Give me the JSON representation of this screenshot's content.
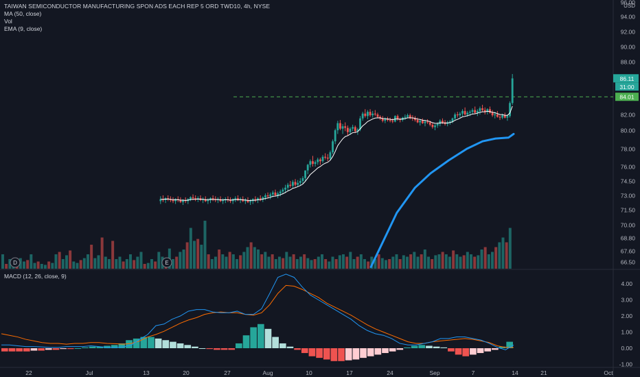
{
  "header": {
    "title": "TAIWAN SEMICONDUCTOR MANUFACTURING SPON ADS EACH REP 5 ORD TWD10, 4h, NYSE",
    "indicators": [
      "MA (50, close)",
      "Vol",
      "EMA (9, close)"
    ],
    "macd_label": "MACD (12, 26, close, 9)"
  },
  "price_axis": {
    "currency": "USD",
    "ticks": [
      "96.00",
      "94.00",
      "92.00",
      "90.00",
      "88.00",
      "84.01",
      "82.00",
      "80.00",
      "78.00",
      "76.00",
      "74.50",
      "73.00",
      "71.50",
      "70.00",
      "68.80",
      "67.60",
      "66.50"
    ],
    "last_price": "86.11",
    "countdown": "31:00",
    "alert_level": "84.01"
  },
  "macd_axis": {
    "ticks": [
      "4.00",
      "3.00",
      "2.00",
      "1.00",
      "0.00",
      "-1.00"
    ]
  },
  "time_axis": {
    "labels": [
      "22",
      "Jul",
      "13",
      "20",
      "27",
      "Aug",
      "10",
      "17",
      "24",
      "Sep",
      "7",
      "14",
      "21",
      "Oct"
    ]
  },
  "markers": [
    {
      "letter": "D",
      "meaning": "dividend"
    },
    {
      "letter": "E",
      "meaning": "earnings"
    }
  ],
  "colors": {
    "background": "#131722",
    "up": "#26a69a",
    "down": "#ef5350",
    "ma50": "#2196f3",
    "ema9": "#ffffff",
    "macd_line": "#2196f3",
    "signal_line": "#ff6d00",
    "alert_line": "#4caf50"
  },
  "chart_data": {
    "type": "candlestick",
    "candles_ohlc": [
      [
        72.4,
        72.9,
        72.1,
        72.6
      ],
      [
        72.6,
        73.0,
        72.3,
        72.5
      ],
      [
        72.5,
        72.8,
        72.2,
        72.7
      ],
      [
        72.7,
        73.0,
        72.4,
        72.6
      ],
      [
        72.6,
        72.9,
        72.3,
        72.5
      ],
      [
        72.5,
        72.8,
        72.2,
        72.4
      ],
      [
        72.4,
        72.7,
        72.1,
        72.6
      ],
      [
        72.6,
        72.9,
        72.3,
        72.5
      ],
      [
        72.5,
        72.8,
        72.2,
        72.3
      ],
      [
        72.3,
        72.6,
        72.0,
        72.5
      ],
      [
        72.5,
        72.8,
        72.2,
        72.4
      ],
      [
        72.4,
        72.7,
        72.1,
        72.6
      ],
      [
        72.6,
        72.9,
        72.4,
        72.8
      ],
      [
        72.8,
        73.1,
        72.5,
        72.7
      ],
      [
        72.7,
        73.0,
        72.4,
        72.6
      ],
      [
        72.6,
        72.9,
        72.3,
        72.7
      ],
      [
        72.7,
        73.0,
        72.4,
        72.5
      ],
      [
        72.5,
        72.8,
        72.2,
        72.6
      ],
      [
        72.6,
        72.9,
        72.3,
        72.4
      ],
      [
        72.4,
        72.7,
        72.1,
        72.5
      ],
      [
        72.5,
        72.8,
        72.2,
        72.7
      ],
      [
        72.7,
        73.0,
        72.4,
        72.6
      ],
      [
        72.6,
        72.9,
        72.3,
        72.5
      ],
      [
        72.5,
        72.8,
        72.2,
        72.6
      ],
      [
        72.6,
        72.9,
        72.3,
        72.4
      ],
      [
        72.4,
        72.7,
        72.1,
        72.5
      ],
      [
        72.5,
        72.8,
        72.2,
        72.6
      ],
      [
        72.6,
        72.9,
        72.3,
        72.5
      ],
      [
        72.5,
        72.8,
        72.2,
        72.4
      ],
      [
        72.4,
        72.7,
        72.1,
        72.6
      ],
      [
        72.6,
        72.9,
        72.3,
        72.7
      ],
      [
        72.7,
        73.0,
        72.4,
        72.5
      ],
      [
        72.5,
        72.8,
        72.2,
        72.6
      ],
      [
        72.6,
        72.9,
        72.3,
        72.4
      ],
      [
        72.4,
        72.7,
        72.1,
        72.5
      ],
      [
        72.5,
        72.8,
        72.2,
        72.3
      ],
      [
        72.3,
        72.6,
        72.0,
        72.4
      ],
      [
        72.4,
        72.7,
        72.1,
        72.6
      ],
      [
        72.6,
        72.9,
        72.3,
        72.5
      ],
      [
        72.5,
        72.8,
        72.2,
        72.7
      ],
      [
        72.7,
        73.0,
        72.4,
        72.6
      ],
      [
        72.6,
        72.9,
        72.3,
        72.8
      ],
      [
        72.8,
        73.2,
        72.5,
        73.0
      ],
      [
        73.0,
        73.3,
        72.7,
        72.9
      ],
      [
        72.9,
        73.3,
        72.6,
        73.1
      ],
      [
        73.1,
        73.5,
        72.8,
        73.3
      ],
      [
        73.3,
        73.6,
        72.9,
        73.0
      ],
      [
        73.0,
        73.4,
        72.7,
        73.2
      ],
      [
        73.2,
        73.6,
        72.9,
        73.4
      ],
      [
        73.4,
        73.8,
        73.1,
        73.6
      ],
      [
        73.6,
        74.1,
        73.3,
        73.8
      ],
      [
        73.8,
        74.3,
        73.5,
        74.1
      ],
      [
        74.1,
        74.5,
        73.8,
        74.0
      ],
      [
        74.0,
        74.6,
        73.8,
        74.4
      ],
      [
        74.4,
        74.7,
        73.9,
        74.1
      ],
      [
        74.1,
        74.6,
        73.9,
        74.3
      ],
      [
        74.3,
        74.8,
        74.0,
        74.5
      ],
      [
        74.5,
        75.0,
        74.2,
        74.8
      ],
      [
        74.8,
        75.4,
        74.5,
        75.6
      ],
      [
        75.6,
        76.3,
        75.2,
        76.2
      ],
      [
        76.2,
        76.8,
        75.9,
        76.6
      ],
      [
        76.6,
        77.2,
        76.0,
        76.3
      ],
      [
        76.3,
        76.7,
        76.0,
        76.5
      ],
      [
        76.5,
        77.0,
        76.2,
        76.8
      ],
      [
        76.8,
        77.0,
        76.2,
        76.6
      ],
      [
        76.6,
        77.3,
        76.4,
        77.1
      ],
      [
        77.1,
        77.5,
        76.8,
        77.0
      ],
      [
        77.0,
        77.4,
        76.6,
        76.9
      ],
      [
        76.9,
        77.8,
        76.7,
        77.6
      ],
      [
        77.6,
        79.0,
        77.4,
        78.8
      ],
      [
        78.8,
        80.2,
        78.5,
        80.0
      ],
      [
        80.0,
        81.2,
        79.6,
        80.9
      ],
      [
        80.9,
        81.3,
        80.0,
        80.2
      ],
      [
        80.2,
        80.8,
        79.6,
        80.5
      ],
      [
        80.5,
        81.0,
        79.9,
        80.3
      ],
      [
        80.3,
        80.6,
        79.4,
        79.8
      ],
      [
        79.8,
        80.4,
        79.5,
        80.2
      ],
      [
        80.2,
        80.7,
        79.9,
        80.4
      ],
      [
        80.4,
        80.6,
        79.7,
        79.9
      ],
      [
        79.9,
        80.3,
        79.5,
        80.1
      ],
      [
        80.1,
        81.8,
        79.9,
        81.5
      ],
      [
        81.5,
        82.3,
        81.2,
        82.1
      ],
      [
        82.1,
        82.6,
        81.6,
        81.8
      ],
      [
        81.8,
        82.5,
        81.4,
        82.3
      ],
      [
        82.3,
        82.6,
        81.7,
        81.9
      ],
      [
        81.9,
        82.4,
        81.6,
        82.1
      ],
      [
        82.1,
        82.5,
        81.8,
        82.0
      ],
      [
        82.0,
        82.2,
        81.6,
        81.7
      ],
      [
        81.7,
        81.9,
        81.3,
        81.5
      ],
      [
        81.5,
        81.8,
        81.0,
        81.2
      ],
      [
        81.2,
        81.6,
        80.9,
        81.4
      ],
      [
        81.4,
        81.7,
        81.1,
        81.3
      ],
      [
        81.3,
        81.6,
        81.0,
        81.2
      ],
      [
        81.2,
        81.5,
        80.9,
        81.1
      ],
      [
        81.1,
        81.9,
        81.0,
        81.8
      ],
      [
        81.8,
        82.0,
        81.2,
        81.4
      ],
      [
        81.4,
        81.6,
        81.0,
        81.3
      ],
      [
        81.3,
        81.7,
        81.1,
        81.6
      ],
      [
        81.6,
        82.0,
        81.3,
        81.7
      ],
      [
        81.7,
        82.1,
        81.5,
        81.9
      ],
      [
        81.9,
        82.1,
        81.4,
        81.6
      ],
      [
        81.6,
        81.9,
        81.2,
        81.5
      ],
      [
        81.5,
        81.8,
        81.1,
        81.3
      ],
      [
        81.3,
        81.6,
        80.9,
        81.0
      ],
      [
        81.0,
        81.4,
        80.6,
        81.2
      ],
      [
        81.2,
        81.5,
        80.8,
        80.9
      ],
      [
        80.9,
        81.3,
        80.5,
        81.1
      ],
      [
        81.1,
        81.4,
        80.8,
        81.0
      ],
      [
        81.0,
        81.2,
        80.5,
        80.7
      ],
      [
        80.7,
        81.0,
        80.2,
        80.4
      ],
      [
        80.4,
        80.8,
        80.0,
        80.6
      ],
      [
        80.6,
        81.0,
        80.3,
        80.8
      ],
      [
        80.8,
        81.4,
        80.5,
        81.2
      ],
      [
        81.2,
        81.5,
        80.8,
        81.0
      ],
      [
        81.0,
        81.3,
        80.6,
        80.8
      ],
      [
        80.8,
        81.2,
        80.5,
        81.0
      ],
      [
        81.0,
        81.3,
        80.7,
        81.1
      ],
      [
        81.1,
        81.6,
        80.9,
        81.5
      ],
      [
        81.5,
        82.2,
        81.3,
        82.0
      ],
      [
        82.0,
        82.3,
        81.6,
        81.9
      ],
      [
        81.9,
        82.3,
        81.6,
        82.1
      ],
      [
        82.1,
        82.6,
        81.8,
        82.4
      ],
      [
        82.4,
        82.8,
        81.9,
        82.0
      ],
      [
        82.0,
        82.4,
        81.7,
        82.2
      ],
      [
        82.2,
        82.5,
        81.8,
        82.3
      ],
      [
        82.3,
        82.7,
        82.0,
        82.5
      ],
      [
        82.5,
        82.9,
        82.1,
        82.2
      ],
      [
        82.2,
        82.6,
        81.8,
        82.4
      ],
      [
        82.4,
        82.9,
        82.0,
        82.7
      ],
      [
        82.7,
        83.1,
        82.3,
        82.5
      ],
      [
        82.5,
        82.8,
        82.0,
        82.3
      ],
      [
        82.3,
        82.7,
        82.0,
        82.6
      ],
      [
        82.6,
        82.9,
        82.1,
        82.2
      ],
      [
        82.2,
        82.5,
        81.7,
        81.9
      ],
      [
        81.9,
        82.3,
        81.5,
        82.0
      ],
      [
        82.0,
        82.4,
        81.6,
        81.7
      ],
      [
        81.7,
        82.0,
        81.3,
        81.6
      ],
      [
        81.6,
        82.1,
        81.4,
        81.9
      ],
      [
        81.9,
        82.2,
        81.5,
        81.6
      ],
      [
        81.6,
        82.0,
        81.2,
        81.8
      ],
      [
        81.8,
        83.5,
        81.6,
        83.3
      ],
      [
        83.3,
        86.6,
        83.1,
        86.1
      ]
    ],
    "volume_relative": [
      0.3,
      0.1,
      0.2,
      0.15,
      0.1,
      0.22,
      0.15,
      0.18,
      0.3,
      0.12,
      0.15,
      0.1,
      0.08,
      0.15,
      0.12,
      0.3,
      0.35,
      0.2,
      0.28,
      0.38,
      0.15,
      0.12,
      0.18,
      0.22,
      0.3,
      0.5,
      0.22,
      0.28,
      0.65,
      0.25,
      0.2,
      0.58,
      0.2,
      0.25,
      0.15,
      0.2,
      0.3,
      0.18,
      0.25,
      0.35,
      0.1,
      0.12,
      0.2,
      0.15,
      0.35,
      0.25,
      0.15,
      0.42,
      0.2,
      0.25,
      0.35,
      0.4,
      0.55,
      0.85,
      0.58,
      0.62,
      0.5,
      1.0,
      0.3,
      0.2,
      0.25,
      0.4,
      0.3,
      0.25,
      0.35,
      0.3,
      0.2,
      0.28,
      0.35,
      0.45,
      0.55,
      0.45,
      0.4,
      0.3,
      0.35,
      0.25,
      0.3,
      0.2,
      0.25,
      0.22,
      0.35,
      0.25,
      0.3,
      0.2,
      0.25,
      0.3,
      0.22,
      0.18,
      0.2,
      0.25,
      0.3,
      0.2,
      0.15,
      0.25,
      0.2,
      0.28,
      0.3,
      0.25,
      0.35,
      0.2,
      0.25,
      0.3,
      0.2,
      0.15,
      0.25,
      0.2,
      0.3,
      0.22,
      0.18,
      0.2,
      0.25,
      0.3,
      0.2,
      0.28,
      0.25,
      0.3,
      0.35,
      0.25,
      0.3,
      0.4,
      0.25,
      0.2,
      0.28,
      0.3,
      0.35,
      0.3,
      0.25,
      0.38,
      0.3,
      0.25,
      0.28,
      0.35,
      0.3,
      0.25,
      0.28,
      0.4,
      0.45,
      0.3,
      0.35,
      0.45,
      0.55,
      0.65,
      0.55,
      0.85
    ],
    "ma50_visible_points": [
      [
        0.45,
        66.0
      ],
      [
        0.55,
        71.2
      ],
      [
        0.62,
        73.8
      ],
      [
        0.68,
        75.3
      ],
      [
        0.75,
        76.7
      ],
      [
        0.82,
        78.0
      ],
      [
        0.88,
        78.8
      ],
      [
        0.93,
        79.1
      ],
      [
        0.98,
        79.2
      ],
      [
        1.0,
        79.6
      ]
    ],
    "macd_line": [
      0.2,
      0.2,
      0.15,
      0.1,
      0.1,
      0.08,
      0.05,
      0.05,
      0.1,
      0.1,
      0.1,
      0.15,
      0.1,
      0.05,
      0.05,
      0.08,
      0.2,
      0.55,
      0.85,
      1.4,
      1.5,
      1.8,
      2.0,
      2.3,
      2.4,
      2.4,
      2.25,
      2.2,
      2.2,
      2.3,
      2.1,
      2.1,
      2.45,
      3.4,
      4.4,
      4.6,
      4.4,
      3.8,
      3.3,
      3.0,
      2.7,
      2.4,
      2.1,
      1.8,
      1.4,
      1.1,
      0.9,
      0.8,
      0.6,
      0.3,
      0.2,
      0.2,
      0.3,
      0.4,
      0.6,
      0.6,
      0.7,
      0.7,
      0.6,
      0.5,
      0.3,
      0.05,
      -0.1,
      0.2
    ],
    "signal_line": [
      0.9,
      0.8,
      0.7,
      0.55,
      0.45,
      0.35,
      0.3,
      0.3,
      0.25,
      0.3,
      0.3,
      0.35,
      0.35,
      0.3,
      0.28,
      0.25,
      0.3,
      0.45,
      0.7,
      0.85,
      1.05,
      1.3,
      1.55,
      1.75,
      1.9,
      2.1,
      2.2,
      2.25,
      2.2,
      2.2,
      2.1,
      2.05,
      2.2,
      2.7,
      3.4,
      3.9,
      3.85,
      3.65,
      3.4,
      3.15,
      2.8,
      2.55,
      2.3,
      2.05,
      1.75,
      1.45,
      1.2,
      1.0,
      0.8,
      0.6,
      0.4,
      0.3,
      0.3,
      0.4,
      0.45,
      0.5,
      0.55,
      0.6,
      0.55,
      0.45,
      0.35,
      0.15,
      0.05,
      0.05
    ],
    "macd_histogram": [
      -0.2,
      -0.2,
      -0.2,
      -0.2,
      -0.15,
      -0.15,
      -0.1,
      -0.1,
      -0.05,
      -0.05,
      0.0,
      0.05,
      0.1,
      0.1,
      0.15,
      0.2,
      0.3,
      0.5,
      0.6,
      0.7,
      0.7,
      0.6,
      0.5,
      0.4,
      0.3,
      0.2,
      0.1,
      0.0,
      -0.05,
      -0.1,
      -0.1,
      -0.1,
      0.3,
      0.8,
      1.3,
      1.5,
      1.2,
      0.7,
      0.3,
      0.1,
      -0.1,
      -0.3,
      -0.5,
      -0.6,
      -0.7,
      -0.8,
      -0.8,
      -0.75,
      -0.7,
      -0.6,
      -0.5,
      -0.4,
      -0.3,
      -0.2,
      -0.1,
      0.05,
      0.15,
      0.2,
      0.15,
      0.1,
      0.05,
      -0.2,
      -0.4,
      -0.5,
      -0.4,
      -0.3,
      -0.2,
      -0.1,
      0.1,
      0.4
    ],
    "macd_ylim": [
      -1.1,
      4.7
    ]
  }
}
